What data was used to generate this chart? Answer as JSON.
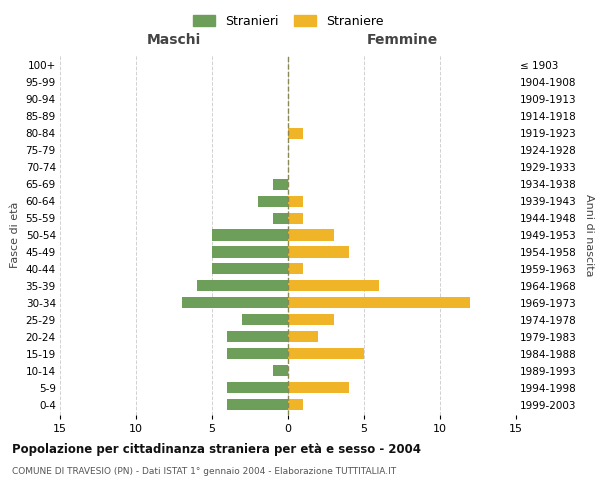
{
  "age_groups": [
    "0-4",
    "5-9",
    "10-14",
    "15-19",
    "20-24",
    "25-29",
    "30-34",
    "35-39",
    "40-44",
    "45-49",
    "50-54",
    "55-59",
    "60-64",
    "65-69",
    "70-74",
    "75-79",
    "80-84",
    "85-89",
    "90-94",
    "95-99",
    "100+"
  ],
  "birth_years": [
    "1999-2003",
    "1994-1998",
    "1989-1993",
    "1984-1988",
    "1979-1983",
    "1974-1978",
    "1969-1973",
    "1964-1968",
    "1959-1963",
    "1954-1958",
    "1949-1953",
    "1944-1948",
    "1939-1943",
    "1934-1938",
    "1929-1933",
    "1924-1928",
    "1919-1923",
    "1914-1918",
    "1909-1913",
    "1904-1908",
    "≤ 1903"
  ],
  "maschi": [
    4,
    4,
    1,
    4,
    4,
    3,
    7,
    6,
    5,
    5,
    5,
    1,
    2,
    1,
    0,
    0,
    0,
    0,
    0,
    0,
    0
  ],
  "femmine": [
    1,
    4,
    0,
    5,
    2,
    3,
    12,
    6,
    1,
    4,
    3,
    1,
    1,
    0,
    0,
    0,
    1,
    0,
    0,
    0,
    0
  ],
  "male_color": "#6d9e5a",
  "female_color": "#f0b429",
  "title": "Popolazione per cittadinanza straniera per età e sesso - 2004",
  "subtitle": "COMUNE DI TRAVESIO (PN) - Dati ISTAT 1° gennaio 2004 - Elaborazione TUTTITALIA.IT",
  "xlabel_left": "Maschi",
  "xlabel_right": "Femmine",
  "ylabel_left": "Fasce di età",
  "ylabel_right": "Anni di nascita",
  "legend_male": "Stranieri",
  "legend_female": "Straniere",
  "xlim": 15,
  "background_color": "#ffffff",
  "grid_color": "#cccccc"
}
